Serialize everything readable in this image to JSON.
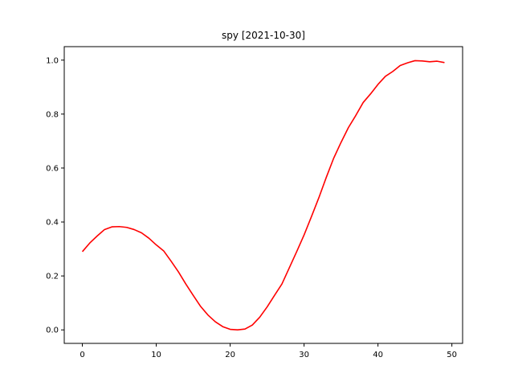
{
  "chart_data": {
    "type": "line",
    "title": "spy [2021-10-30]",
    "xlabel": "",
    "ylabel": "",
    "xlim": [
      -2.45,
      51.45
    ],
    "ylim": [
      -0.05,
      1.05
    ],
    "x_ticks": [
      0,
      10,
      20,
      30,
      40,
      50
    ],
    "y_ticks": [
      0.0,
      0.2,
      0.4,
      0.6,
      0.8,
      1.0
    ],
    "x_tick_labels": [
      "0",
      "10",
      "20",
      "30",
      "40",
      "50"
    ],
    "y_tick_labels": [
      "0.0",
      "0.2",
      "0.4",
      "0.6",
      "0.8",
      "1.0"
    ],
    "grid": false,
    "series": [
      {
        "color": "#ff0000",
        "x": [
          0,
          1,
          2,
          3,
          4,
          5,
          6,
          7,
          8,
          9,
          10,
          11,
          12,
          13,
          14,
          15,
          16,
          17,
          18,
          19,
          20,
          21,
          22,
          23,
          24,
          25,
          26,
          27,
          28,
          29,
          30,
          31,
          32,
          33,
          34,
          35,
          36,
          37,
          38,
          39,
          40,
          41,
          42,
          43,
          44,
          45,
          46,
          47,
          48,
          49
        ],
        "y": [
          0.29,
          0.322,
          0.348,
          0.372,
          0.382,
          0.383,
          0.38,
          0.372,
          0.36,
          0.34,
          0.315,
          0.293,
          0.255,
          0.215,
          0.17,
          0.128,
          0.087,
          0.055,
          0.03,
          0.012,
          0.002,
          0.0,
          0.003,
          0.018,
          0.047,
          0.085,
          0.128,
          0.17,
          0.23,
          0.29,
          0.352,
          0.42,
          0.49,
          0.565,
          0.636,
          0.695,
          0.75,
          0.795,
          0.843,
          0.875,
          0.91,
          0.94,
          0.958,
          0.98,
          0.99,
          0.998,
          0.997,
          0.994,
          0.996,
          0.991
        ]
      }
    ]
  }
}
